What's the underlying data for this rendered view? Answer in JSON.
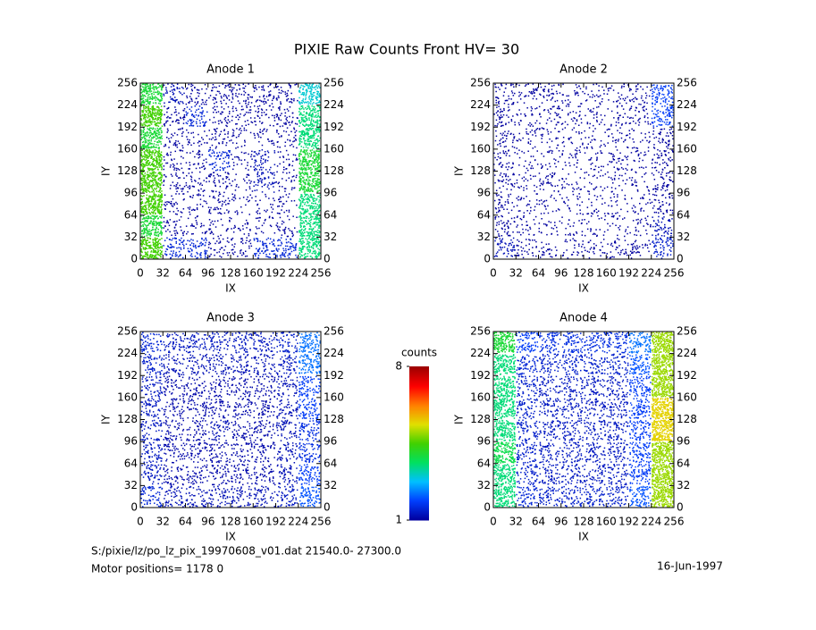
{
  "chart_data": {
    "type": "heatmap",
    "title": "PIXIE Raw Counts Front HV= 30",
    "footer": [
      "S:/pixie/lz/po_lz_pix_19970608_v01.dat    21540.0- 27300.0",
      "Motor positions= 1178 0"
    ],
    "date": "16-Jun-1997",
    "colorbar": {
      "label": "counts",
      "lim": [
        1,
        8
      ],
      "ticks": [
        1,
        8
      ],
      "colors": [
        "#0000a0",
        "#0040ff",
        "#00c0ff",
        "#00e060",
        "#40d000",
        "#e0e000",
        "#ff8000",
        "#ff0000",
        "#a00000"
      ]
    },
    "panels": [
      {
        "title": "Anode 1",
        "xlabel": "IX",
        "ylabel": "IY",
        "xlim": [
          0,
          256
        ],
        "ylim": [
          0,
          256
        ],
        "xticks": [
          0,
          32,
          64,
          96,
          128,
          160,
          192,
          224,
          256
        ],
        "yticks": [
          0,
          32,
          64,
          96,
          128,
          160,
          192,
          224,
          256
        ],
        "values": [
          [
            4.5,
            1.5,
            1.5,
            0.8,
            0.8,
            1.5,
            1.5,
            3.5
          ],
          [
            4,
            0.8,
            0.6,
            0.6,
            0.5,
            0.5,
            0.8,
            3.5
          ],
          [
            4.5,
            0.8,
            0.6,
            1,
            0.5,
            0.5,
            0.6,
            3.5
          ],
          [
            4.5,
            0.8,
            0.8,
            1,
            0.5,
            1.2,
            0.6,
            4
          ],
          [
            4.5,
            0.8,
            0.8,
            1.5,
            0.6,
            1.2,
            0.6,
            4
          ],
          [
            4,
            0.8,
            0.6,
            0.8,
            0.6,
            0.6,
            0.8,
            3.5
          ],
          [
            4.5,
            1,
            1.5,
            0.8,
            0.8,
            0.8,
            1,
            3.5
          ],
          [
            4,
            1.2,
            1,
            1,
            1,
            1,
            1,
            3
          ]
        ]
      },
      {
        "title": "Anode 2",
        "xlabel": "IX",
        "ylabel": "IY",
        "xlim": [
          0,
          256
        ],
        "ylim": [
          0,
          256
        ],
        "xticks": [
          0,
          32,
          64,
          96,
          128,
          160,
          192,
          224,
          256
        ],
        "yticks": [
          0,
          32,
          64,
          96,
          128,
          160,
          192,
          224,
          256
        ],
        "values": [
          [
            1.2,
            0.8,
            0.6,
            0.6,
            0.6,
            0.8,
            0.8,
            1.4
          ],
          [
            1,
            0.6,
            0.5,
            0.5,
            0.5,
            0.5,
            0.6,
            1.2
          ],
          [
            0.8,
            0.6,
            0.5,
            0.5,
            0.5,
            0.5,
            0.5,
            1
          ],
          [
            0.8,
            0.5,
            0.8,
            0.5,
            0.5,
            0.5,
            0.5,
            1
          ],
          [
            0.8,
            0.5,
            0.5,
            0.6,
            0.5,
            0.8,
            0.5,
            1
          ],
          [
            0.8,
            0.6,
            0.6,
            0.5,
            0.5,
            0.6,
            0.5,
            1
          ],
          [
            1,
            0.6,
            0.8,
            0.6,
            0.6,
            0.6,
            0.8,
            1.8
          ],
          [
            1,
            0.8,
            0.8,
            0.6,
            0.6,
            0.6,
            0.8,
            1.8
          ]
        ]
      },
      {
        "title": "Anode 3",
        "xlabel": "IX",
        "ylabel": "IY",
        "xlim": [
          0,
          256
        ],
        "ylim": [
          0,
          256
        ],
        "xticks": [
          0,
          32,
          64,
          96,
          128,
          160,
          192,
          224,
          256
        ],
        "yticks": [
          0,
          32,
          64,
          96,
          128,
          160,
          192,
          224,
          256
        ],
        "values": [
          [
            1.5,
            1.2,
            1.2,
            1.2,
            1.2,
            1.2,
            1.3,
            2
          ],
          [
            1.3,
            1.1,
            1.1,
            1.1,
            1.1,
            1.1,
            1.2,
            1.8
          ],
          [
            1.3,
            1.1,
            1.1,
            1.1,
            1.1,
            1.1,
            1.2,
            1.6
          ],
          [
            1.3,
            1.1,
            1.1,
            1.2,
            1.1,
            1.1,
            1.2,
            1.6
          ],
          [
            1.3,
            1.1,
            1.1,
            1.1,
            1.1,
            1.1,
            1.2,
            1.8
          ],
          [
            1.3,
            1.1,
            1.1,
            1.1,
            1.1,
            1.1,
            1.2,
            1.8
          ],
          [
            1.4,
            1.2,
            1.2,
            1.2,
            1.2,
            1.2,
            1.3,
            2.2
          ],
          [
            1.5,
            1.3,
            1.3,
            1.3,
            1.3,
            1.3,
            1.4,
            2.2
          ]
        ]
      },
      {
        "title": "Anode 4",
        "xlabel": "IX",
        "ylabel": "IY",
        "xlim": [
          0,
          256
        ],
        "ylim": [
          0,
          256
        ],
        "xticks": [
          0,
          32,
          64,
          96,
          128,
          160,
          192,
          224,
          256
        ],
        "yticks": [
          0,
          32,
          64,
          96,
          128,
          160,
          192,
          224,
          256
        ],
        "values": [
          [
            3.5,
            1.5,
            1.4,
            1.4,
            1.4,
            1.4,
            2,
            5
          ],
          [
            3.5,
            1.4,
            1.3,
            1.3,
            1.3,
            1.3,
            1.8,
            5
          ],
          [
            3.8,
            1.4,
            1.3,
            1.3,
            1.3,
            1.3,
            1.8,
            5
          ],
          [
            3.5,
            1.4,
            1.3,
            1.3,
            1.3,
            1.3,
            1.8,
            5.5
          ],
          [
            3.5,
            1.4,
            1.3,
            1.3,
            1.3,
            1.3,
            1.8,
            5.5
          ],
          [
            3.5,
            1.4,
            1.3,
            1.3,
            1.3,
            1.3,
            1.8,
            5
          ],
          [
            3.5,
            1.5,
            1.4,
            1.4,
            1.4,
            1.4,
            2,
            5
          ],
          [
            4,
            1.8,
            1.6,
            1.6,
            1.6,
            1.6,
            2.2,
            5
          ]
        ]
      }
    ]
  }
}
